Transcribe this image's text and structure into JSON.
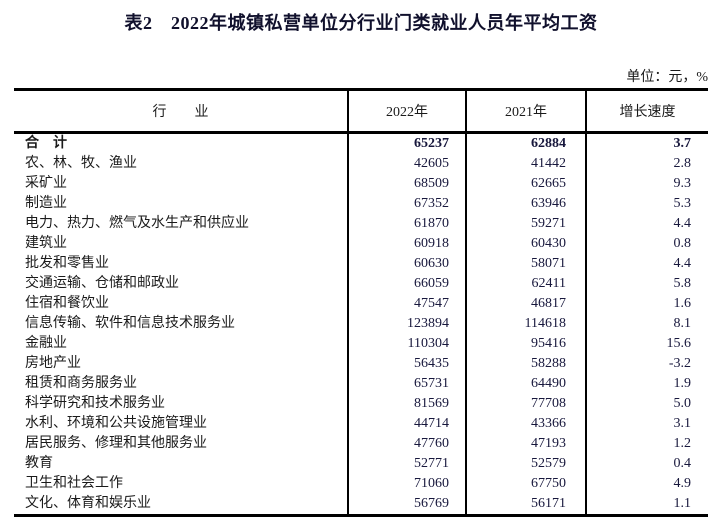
{
  "title": "表2　2022年城镇私营单位分行业门类就业人员年平均工资",
  "unit_label": "单位：元，%",
  "table": {
    "columns": [
      "行　　业",
      "2022年",
      "2021年",
      "增长速度"
    ],
    "rows": [
      {
        "industry": "合　计",
        "y2022": "65237",
        "y2021": "62884",
        "growth": "3.7"
      },
      {
        "industry": "农、林、牧、渔业",
        "y2022": "42605",
        "y2021": "41442",
        "growth": "2.8"
      },
      {
        "industry": "采矿业",
        "y2022": "68509",
        "y2021": "62665",
        "growth": "9.3"
      },
      {
        "industry": "制造业",
        "y2022": "67352",
        "y2021": "63946",
        "growth": "5.3"
      },
      {
        "industry": "电力、热力、燃气及水生产和供应业",
        "y2022": "61870",
        "y2021": "59271",
        "growth": "4.4"
      },
      {
        "industry": "建筑业",
        "y2022": "60918",
        "y2021": "60430",
        "growth": "0.8"
      },
      {
        "industry": "批发和零售业",
        "y2022": "60630",
        "y2021": "58071",
        "growth": "4.4"
      },
      {
        "industry": "交通运输、仓储和邮政业",
        "y2022": "66059",
        "y2021": "62411",
        "growth": "5.8"
      },
      {
        "industry": "住宿和餐饮业",
        "y2022": "47547",
        "y2021": "46817",
        "growth": "1.6"
      },
      {
        "industry": "信息传输、软件和信息技术服务业",
        "y2022": "123894",
        "y2021": "114618",
        "growth": "8.1"
      },
      {
        "industry": "金融业",
        "y2022": "110304",
        "y2021": "95416",
        "growth": "15.6"
      },
      {
        "industry": "房地产业",
        "y2022": "56435",
        "y2021": "58288",
        "growth": "-3.2"
      },
      {
        "industry": "租赁和商务服务业",
        "y2022": "65731",
        "y2021": "64490",
        "growth": "1.9"
      },
      {
        "industry": "科学研究和技术服务业",
        "y2022": "81569",
        "y2021": "77708",
        "growth": "5.0"
      },
      {
        "industry": "水利、环境和公共设施管理业",
        "y2022": "44714",
        "y2021": "43366",
        "growth": "3.1"
      },
      {
        "industry": "居民服务、修理和其他服务业",
        "y2022": "47760",
        "y2021": "47193",
        "growth": "1.2"
      },
      {
        "industry": "教育",
        "y2022": "52771",
        "y2021": "52579",
        "growth": "0.4"
      },
      {
        "industry": "卫生和社会工作",
        "y2022": "71060",
        "y2021": "67750",
        "growth": "4.9"
      },
      {
        "industry": "文化、体育和娱乐业",
        "y2022": "56769",
        "y2021": "56171",
        "growth": "1.1"
      }
    ]
  }
}
